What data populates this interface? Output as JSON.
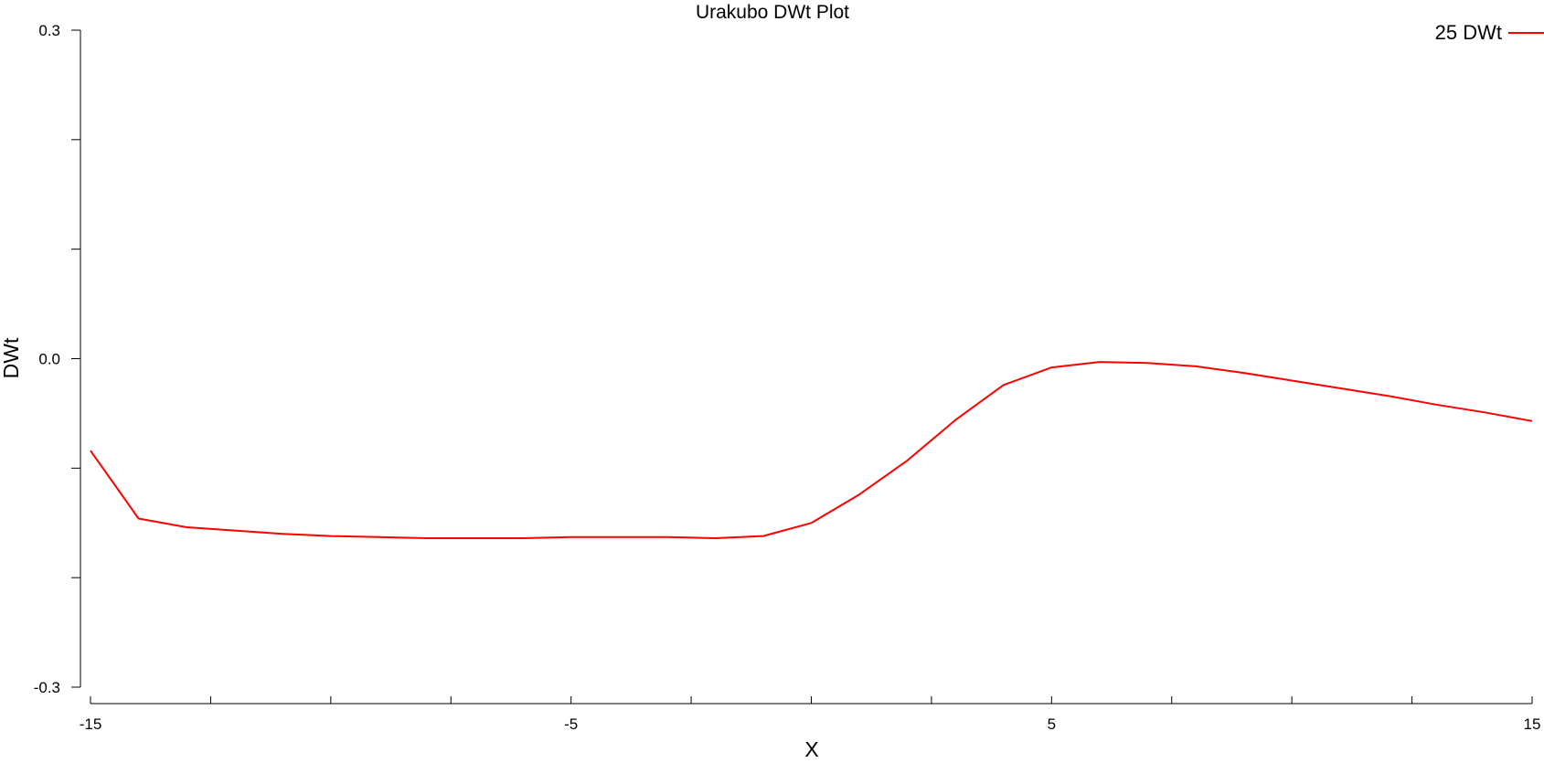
{
  "chart_data": {
    "type": "line",
    "title": "Urakubo DWt Plot",
    "xlabel": "X",
    "ylabel": "DWt",
    "xlim": [
      -15,
      15
    ],
    "ylim": [
      -0.3,
      0.3
    ],
    "x_ticks": [
      -15,
      -12.5,
      -10,
      -7.5,
      -5,
      -2.5,
      0,
      2.5,
      5,
      7.5,
      10,
      12.5,
      15
    ],
    "x_tick_labels": [
      {
        "value": -15,
        "label": "-15"
      },
      {
        "value": -5,
        "label": "-5"
      },
      {
        "value": 5,
        "label": "5"
      },
      {
        "value": 15,
        "label": "15"
      }
    ],
    "y_ticks": [
      -0.3,
      -0.2,
      -0.1,
      0.0,
      0.1,
      0.2,
      0.3
    ],
    "y_tick_labels": [
      {
        "value": 0.3,
        "label": "0.3"
      },
      {
        "value": 0.0,
        "label": "0.0"
      },
      {
        "value": -0.3,
        "label": "-0.3"
      }
    ],
    "grid": false,
    "legend": "top-right",
    "series": [
      {
        "name": "25 DWt",
        "color": "#ff0000",
        "x": [
          -15,
          -14,
          -13,
          -12,
          -11,
          -10,
          -9,
          -8,
          -7,
          -6,
          -5,
          -4,
          -3,
          -2,
          -1,
          0,
          1,
          2,
          3,
          4,
          5,
          6,
          7,
          8,
          9,
          10,
          11,
          12,
          13,
          14,
          15
        ],
        "y": [
          -0.084,
          -0.146,
          -0.154,
          -0.157,
          -0.16,
          -0.162,
          -0.163,
          -0.164,
          -0.164,
          -0.164,
          -0.163,
          -0.163,
          -0.163,
          -0.164,
          -0.162,
          -0.15,
          -0.124,
          -0.093,
          -0.056,
          -0.024,
          -0.008,
          -0.003,
          -0.004,
          -0.007,
          -0.013,
          -0.02,
          -0.027,
          -0.034,
          -0.042,
          -0.049,
          -0.057
        ]
      }
    ]
  }
}
